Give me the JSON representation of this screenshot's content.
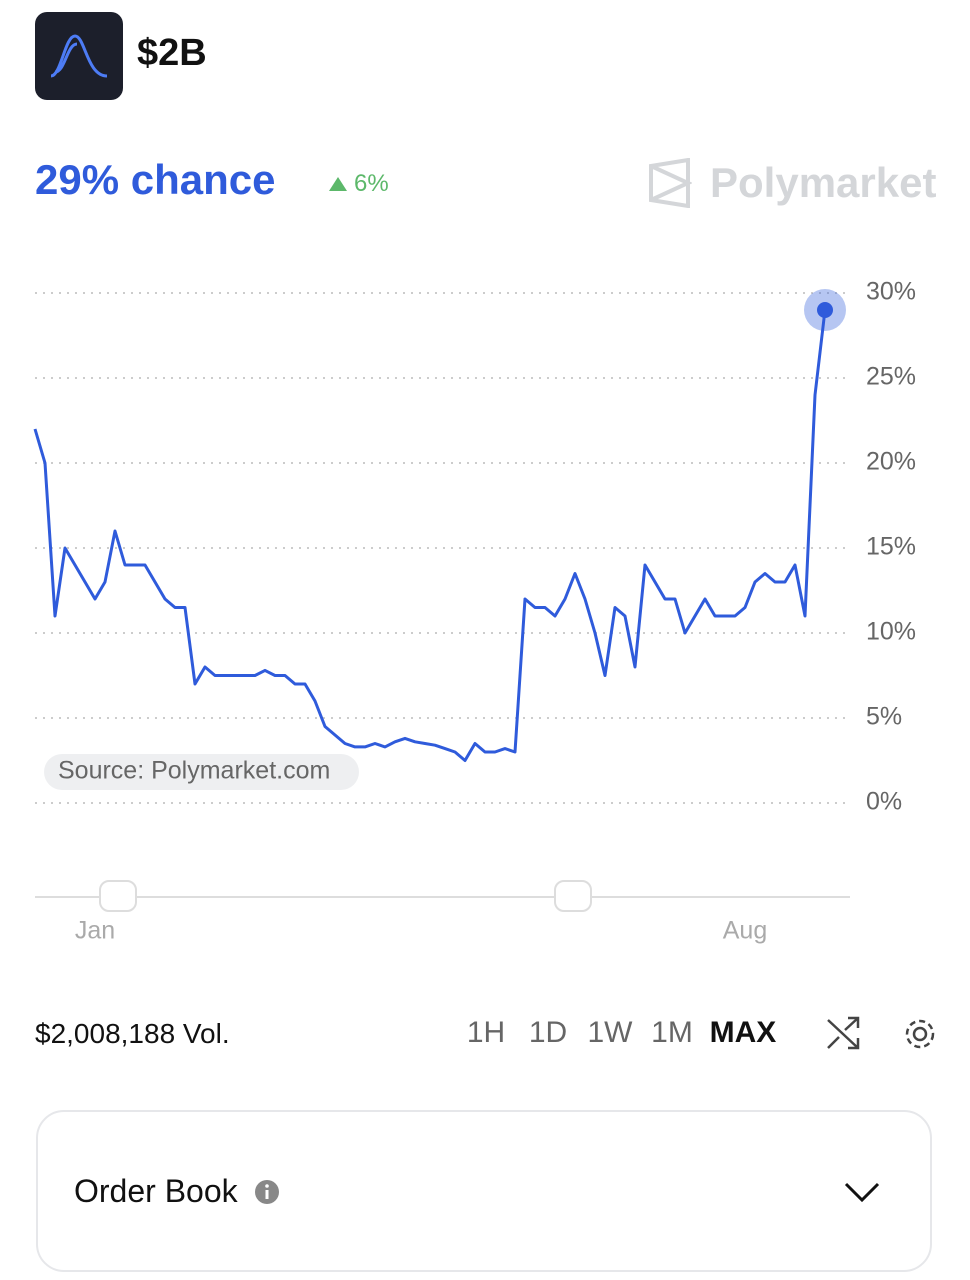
{
  "header": {
    "title": "$2B"
  },
  "summary": {
    "chance": "29% chance",
    "change": "6%"
  },
  "brand": "Polymarket",
  "chart_data": {
    "type": "line",
    "color": "#2f5bdb",
    "annotation": "Source: Polymarket.com",
    "categories": [
      null,
      null,
      null,
      null,
      null,
      null,
      "Jan",
      null,
      null,
      null,
      null,
      null,
      null,
      null,
      null,
      null,
      null,
      null,
      null,
      null,
      null,
      null,
      null,
      null,
      null,
      null,
      null,
      null,
      null,
      null,
      null,
      null,
      null,
      null,
      null,
      null,
      null,
      null,
      null,
      null,
      null,
      null,
      null,
      null,
      null,
      null,
      null,
      null,
      null,
      null,
      null,
      null,
      null,
      null,
      null,
      null,
      null,
      null,
      null,
      null,
      null,
      null,
      null,
      null,
      null,
      null,
      null,
      null,
      null,
      null,
      null,
      "Aug",
      null,
      null,
      null,
      null,
      null,
      null,
      null,
      null
    ],
    "values": [
      22,
      20,
      11,
      15,
      14,
      13,
      12,
      13,
      16,
      14,
      14,
      14,
      13,
      12,
      11.5,
      11.5,
      7,
      8,
      7.5,
      7.5,
      7.5,
      7.5,
      7.5,
      7.8,
      7.5,
      7.5,
      7,
      7,
      6,
      4.5,
      4,
      3.5,
      3.3,
      3.3,
      3.5,
      3.3,
      3.6,
      3.8,
      3.6,
      3.5,
      3.4,
      3.2,
      3,
      2.5,
      3.5,
      3,
      3,
      3.2,
      3,
      12,
      11.5,
      11.5,
      11,
      12,
      13.5,
      12,
      10,
      7.5,
      11.5,
      11,
      8,
      14,
      13,
      12,
      12,
      10,
      11,
      12,
      11,
      11,
      11,
      11.5,
      13,
      13.5,
      13,
      13,
      14,
      11,
      24,
      29
    ],
    "ylim": [
      0,
      30
    ],
    "yticks": [
      {
        "value": 0,
        "label": "0%"
      },
      {
        "value": 5,
        "label": "5%"
      },
      {
        "value": 10,
        "label": "10%"
      },
      {
        "value": 15,
        "label": "15%"
      },
      {
        "value": 20,
        "label": "20%"
      },
      {
        "value": 25,
        "label": "25%"
      },
      {
        "value": 30,
        "label": "30%"
      }
    ],
    "grid": true
  },
  "volume": "$2,008,188 Vol.",
  "ranges": [
    "1H",
    "1D",
    "1W",
    "1M",
    "MAX"
  ],
  "order_book": {
    "title": "Order Book"
  }
}
